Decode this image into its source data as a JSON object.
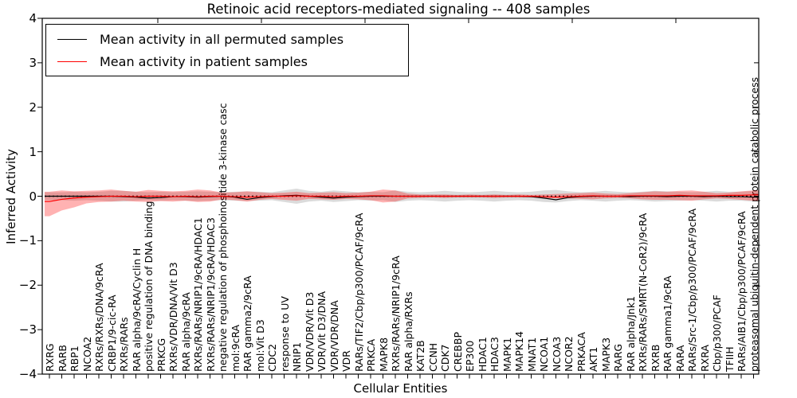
{
  "title": "Retinoic acid receptors-mediated signaling -- 408 samples",
  "legend": {
    "items": [
      {
        "label": "Mean activity in all permuted samples",
        "color": "#000000"
      },
      {
        "label": "Mean activity in patient samples",
        "color": "#ff0000"
      }
    ]
  },
  "axes": {
    "ylabel": "Inferred Activity",
    "xlabel": "Cellular Entities",
    "ytick_labels": [
      "4",
      "3",
      "2",
      "1",
      "0",
      "−1",
      "−2",
      "−3",
      "−4"
    ],
    "ytick_values": [
      4,
      3,
      2,
      1,
      0,
      -1,
      -2,
      -3,
      -4
    ]
  },
  "colors": {
    "background": "#ffffff",
    "axis": "#000000",
    "line_permuted": "#000000",
    "line_patient": "#ff0000",
    "band_permuted": "rgba(0,0,0,0.14)",
    "band_patient": "rgba(255,0,0,0.30)",
    "zero_line": "#000000"
  },
  "chart_data": {
    "type": "line",
    "title": "Retinoic acid receptors-mediated signaling -- 408 samples",
    "xlabel": "Cellular Entities",
    "ylabel": "Inferred Activity",
    "ylim": [
      -4,
      4
    ],
    "grid": false,
    "legend_position": "upper left",
    "categories": [
      "RXRG",
      "RARB",
      "RBP1",
      "NCOA2",
      "RXRs/RXRs/DNA/9cRA",
      "CRBP1/9-cic-RA",
      "RXRs/RARs",
      "RAR alpha/9cRA/Cyclin H",
      "positive regulation of DNA binding",
      "PRKCG",
      "RXRs/VDR/DNA/Vit D3",
      "RAR alpha/9cRA",
      "RXRs/RARs/NRIP1/9cRA/HDAC1",
      "RXRs/RARs/NRIP1/9cRA/HDAC3",
      "negative regulation of phosphoinositide 3-kinase casc",
      "mol:9cRA",
      "RAR gamma2/9cRA",
      "mol:Vit D3",
      "CDC2",
      "response to UV",
      "NRIP1",
      "VDR/VDR/Vit D3",
      "VDR/Vit D3/DNA",
      "VDR/VDR/DNA",
      "VDR",
      "RARs/TIF2/Cbp/p300/PCAF/9cRA",
      "PRKCA",
      "MAPK8",
      "RXRs/RARs/NRIP1/9cRA",
      "RAR alpha/RXRs",
      "KAT2B",
      "CCNH",
      "CDK7",
      "CREBBP",
      "EP300",
      "HDAC1",
      "HDAC3",
      "MAPK1",
      "MAPK14",
      "MNAT1",
      "NCOA1",
      "NCOA3",
      "NCOR2",
      "PRKACA",
      "AKT1",
      "MAPK3",
      "RARG",
      "RAR alpha/Jnk1",
      "RXRs/RARs/SMRT(N-CoR2)/9cRA",
      "RXRB",
      "RAR gamma1/9cRA",
      "RARA",
      "RARs/Src-1/Cbp/p300/PCAF/9cRA",
      "RXRA",
      "Cbp/p300/PCAF",
      "TFIIH",
      "RARs/AIB1/Cbp/p300/PCAF/9cRA",
      "proteasomal ubiquitin-dependent protein catabolic process"
    ],
    "series": [
      {
        "name": "Mean activity in all permuted samples",
        "color": "#000000",
        "values": [
          0,
          0,
          0,
          0,
          0,
          0,
          -0.01,
          -0.02,
          -0.04,
          -0.03,
          -0.01,
          -0.01,
          -0.02,
          -0.01,
          0,
          -0.02,
          -0.07,
          -0.03,
          -0.01,
          0.01,
          0.02,
          0,
          -0.02,
          -0.04,
          -0.02,
          -0.01,
          0,
          0,
          0,
          0,
          0,
          0,
          0,
          0,
          0,
          0,
          0,
          0,
          0,
          -0.01,
          -0.04,
          -0.08,
          -0.03,
          -0.01,
          0,
          0,
          0,
          -0.01,
          0,
          0,
          -0.01,
          0,
          0,
          -0.01,
          0,
          -0.01,
          -0.01,
          -0.02
        ]
      },
      {
        "name": "Mean activity in patient samples",
        "color": "#ff0000",
        "values": [
          -0.12,
          -0.07,
          -0.04,
          -0.02,
          -0.01,
          0,
          0,
          -0.01,
          0,
          0,
          -0.01,
          0,
          -0.01,
          0,
          0,
          -0.01,
          -0.02,
          -0.01,
          0,
          0,
          0.01,
          0,
          0,
          -0.01,
          0,
          0,
          0.01,
          0.01,
          0,
          0,
          0,
          0,
          0,
          0,
          0,
          0,
          0,
          0,
          0,
          0,
          -0.01,
          -0.02,
          -0.01,
          0,
          0.01,
          0,
          0,
          0.01,
          0.01,
          0.01,
          0.01,
          0.02,
          0.01,
          0.01,
          0.01,
          0.02,
          0.02,
          0.03
        ]
      }
    ],
    "bands": [
      {
        "name": "permuted-samples-band",
        "upper": [
          0.09,
          0.09,
          0.1,
          0.09,
          0.1,
          0.12,
          0.12,
          0.1,
          0.09,
          0.1,
          0.09,
          0.1,
          0.11,
          0.1,
          0.09,
          0.1,
          0.11,
          0.1,
          0.09,
          0.13,
          0.17,
          0.12,
          0.1,
          0.13,
          0.11,
          0.09,
          0.1,
          0.09,
          0.13,
          0.1,
          0.09,
          0.1,
          0.12,
          0.1,
          0.09,
          0.1,
          0.12,
          0.1,
          0.09,
          0.1,
          0.13,
          0.14,
          0.11,
          0.09,
          0.1,
          0.12,
          0.1,
          0.09,
          0.1,
          0.12,
          0.11,
          0.1,
          0.09,
          0.1,
          0.12,
          0.1,
          0.1,
          0.12
        ],
        "lower": [
          -0.09,
          -0.09,
          -0.1,
          -0.09,
          -0.1,
          -0.12,
          -0.12,
          -0.1,
          -0.09,
          -0.1,
          -0.09,
          -0.1,
          -0.11,
          -0.1,
          -0.09,
          -0.1,
          -0.11,
          -0.1,
          -0.09,
          -0.13,
          -0.17,
          -0.12,
          -0.1,
          -0.13,
          -0.11,
          -0.09,
          -0.1,
          -0.09,
          -0.13,
          -0.1,
          -0.09,
          -0.1,
          -0.12,
          -0.1,
          -0.09,
          -0.1,
          -0.12,
          -0.1,
          -0.09,
          -0.1,
          -0.13,
          -0.14,
          -0.11,
          -0.09,
          -0.1,
          -0.12,
          -0.1,
          -0.09,
          -0.1,
          -0.12,
          -0.11,
          -0.1,
          -0.09,
          -0.1,
          -0.12,
          -0.1,
          -0.1,
          -0.12
        ]
      },
      {
        "name": "patient-samples-band",
        "upper": [
          0.1,
          0.13,
          0.11,
          0.12,
          0.13,
          0.15,
          0.12,
          0.1,
          0.14,
          0.12,
          0.11,
          0.12,
          0.15,
          0.13,
          0.08,
          0.09,
          0.11,
          0.09,
          0.07,
          0.08,
          0.1,
          0.07,
          0.08,
          0.09,
          0.07,
          0.08,
          0.1,
          0.15,
          0.13,
          0.06,
          0.04,
          0.04,
          0.04,
          0.03,
          0.04,
          0.03,
          0.04,
          0.03,
          0.04,
          0.03,
          0.04,
          0.05,
          0.06,
          0.07,
          0.08,
          0.06,
          0.05,
          0.07,
          0.09,
          0.11,
          0.1,
          0.12,
          0.13,
          0.1,
          0.07,
          0.08,
          0.11,
          0.13
        ],
        "lower": [
          -0.45,
          -0.32,
          -0.25,
          -0.16,
          -0.13,
          -0.12,
          -0.1,
          -0.12,
          -0.13,
          -0.11,
          -0.12,
          -0.1,
          -0.13,
          -0.12,
          -0.07,
          -0.09,
          -0.12,
          -0.08,
          -0.06,
          -0.08,
          -0.1,
          -0.06,
          -0.07,
          -0.08,
          -0.06,
          -0.07,
          -0.09,
          -0.14,
          -0.12,
          -0.05,
          -0.04,
          -0.03,
          -0.04,
          -0.03,
          -0.03,
          -0.03,
          -0.04,
          -0.03,
          -0.03,
          -0.03,
          -0.04,
          -0.05,
          -0.05,
          -0.06,
          -0.07,
          -0.05,
          -0.04,
          -0.05,
          -0.07,
          -0.08,
          -0.08,
          -0.09,
          -0.1,
          -0.07,
          -0.05,
          -0.06,
          -0.08,
          -0.1
        ]
      }
    ],
    "zero_line": {
      "value": 0,
      "style": "dotted",
      "color": "#000000"
    }
  }
}
